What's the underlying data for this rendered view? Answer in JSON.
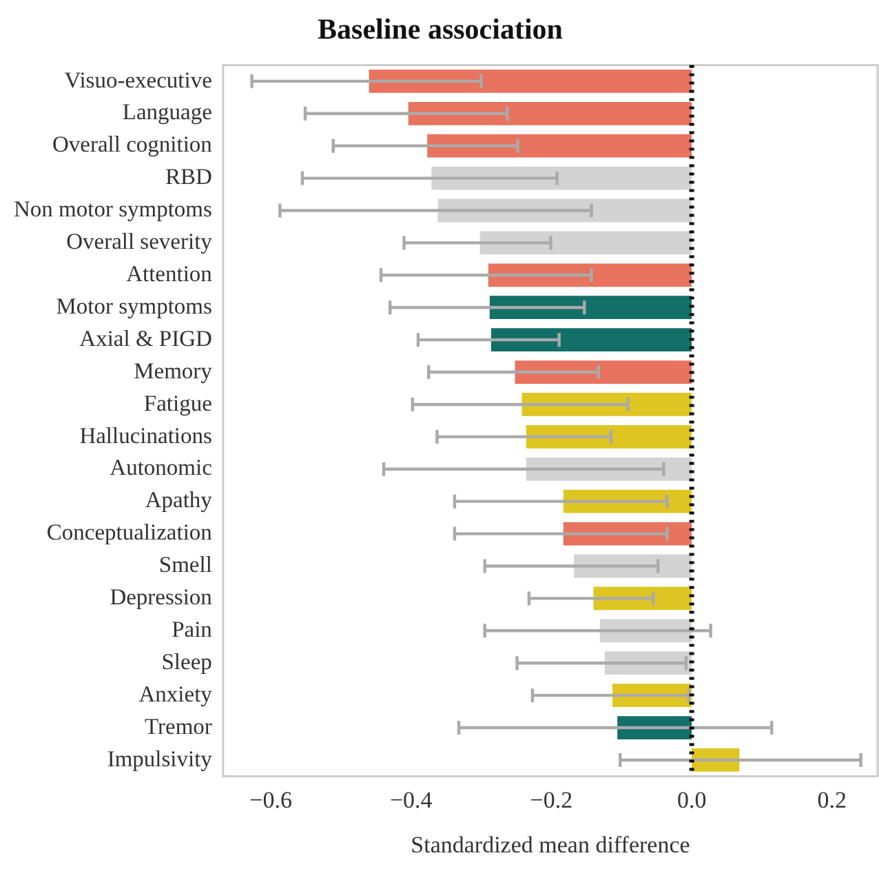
{
  "chart_data": {
    "type": "bar",
    "orientation": "horizontal",
    "title": "Baseline association",
    "xlabel": "Standardized mean difference",
    "categories": [
      "Visuo-executive",
      "Language",
      "Overall cognition",
      "RBD",
      "Non motor symptoms",
      "Overall severity",
      "Attention",
      "Motor symptoms",
      "Axial & PIGD",
      "Memory",
      "Fatigue",
      "Hallucinations",
      "Autonomic",
      "Apathy",
      "Conceptualization",
      "Smell",
      "Depression",
      "Pain",
      "Sleep",
      "Anxiety",
      "Tremor",
      "Impulsivity"
    ],
    "values": [
      -0.46,
      -0.404,
      -0.377,
      -0.371,
      -0.362,
      -0.302,
      -0.29,
      -0.288,
      -0.286,
      -0.252,
      -0.242,
      -0.236,
      -0.236,
      -0.183,
      -0.183,
      -0.168,
      -0.14,
      -0.131,
      -0.124,
      -0.113,
      -0.106,
      0.068
    ],
    "colors": [
      "#e8735f",
      "#e8735f",
      "#e8735f",
      "#d3d3d3",
      "#d3d3d3",
      "#d3d3d3",
      "#e8735f",
      "#137068",
      "#137068",
      "#e8735f",
      "#dfc522",
      "#dfc522",
      "#d3d3d3",
      "#dfc522",
      "#e8735f",
      "#d3d3d3",
      "#dfc522",
      "#d3d3d3",
      "#d3d3d3",
      "#dfc522",
      "#137068",
      "#dfc522"
    ],
    "errors": [
      [
        -0.627,
        -0.3
      ],
      [
        -0.551,
        -0.263
      ],
      [
        -0.511,
        -0.248
      ],
      [
        -0.555,
        -0.192
      ],
      [
        -0.587,
        -0.143
      ],
      [
        -0.41,
        -0.201
      ],
      [
        -0.443,
        -0.143
      ],
      [
        -0.43,
        -0.153
      ],
      [
        -0.39,
        -0.189
      ],
      [
        -0.375,
        -0.133
      ],
      [
        -0.398,
        -0.091
      ],
      [
        -0.363,
        -0.115
      ],
      [
        -0.439,
        -0.04
      ],
      [
        -0.338,
        -0.035
      ],
      [
        -0.338,
        -0.035
      ],
      [
        -0.295,
        -0.048
      ],
      [
        -0.232,
        -0.055
      ],
      [
        -0.295,
        0.027
      ],
      [
        -0.249,
        -0.008
      ],
      [
        -0.227,
        -0.004
      ],
      [
        -0.332,
        0.114
      ],
      [
        -0.102,
        0.241
      ]
    ],
    "xlim": [
      -0.668,
      0.265
    ],
    "xticks": [
      {
        "value": -0.6,
        "label": "−0.6"
      },
      {
        "value": -0.4,
        "label": "−0.4"
      },
      {
        "value": -0.2,
        "label": "−0.2"
      },
      {
        "value": 0,
        "label": "0.0"
      },
      {
        "value": 0.2,
        "label": "0.2"
      }
    ],
    "ref_lines": [
      {
        "axis": "x",
        "value": 0,
        "color": "#000000",
        "line_style": "dotted"
      }
    ],
    "grid": false,
    "legend": false
  }
}
